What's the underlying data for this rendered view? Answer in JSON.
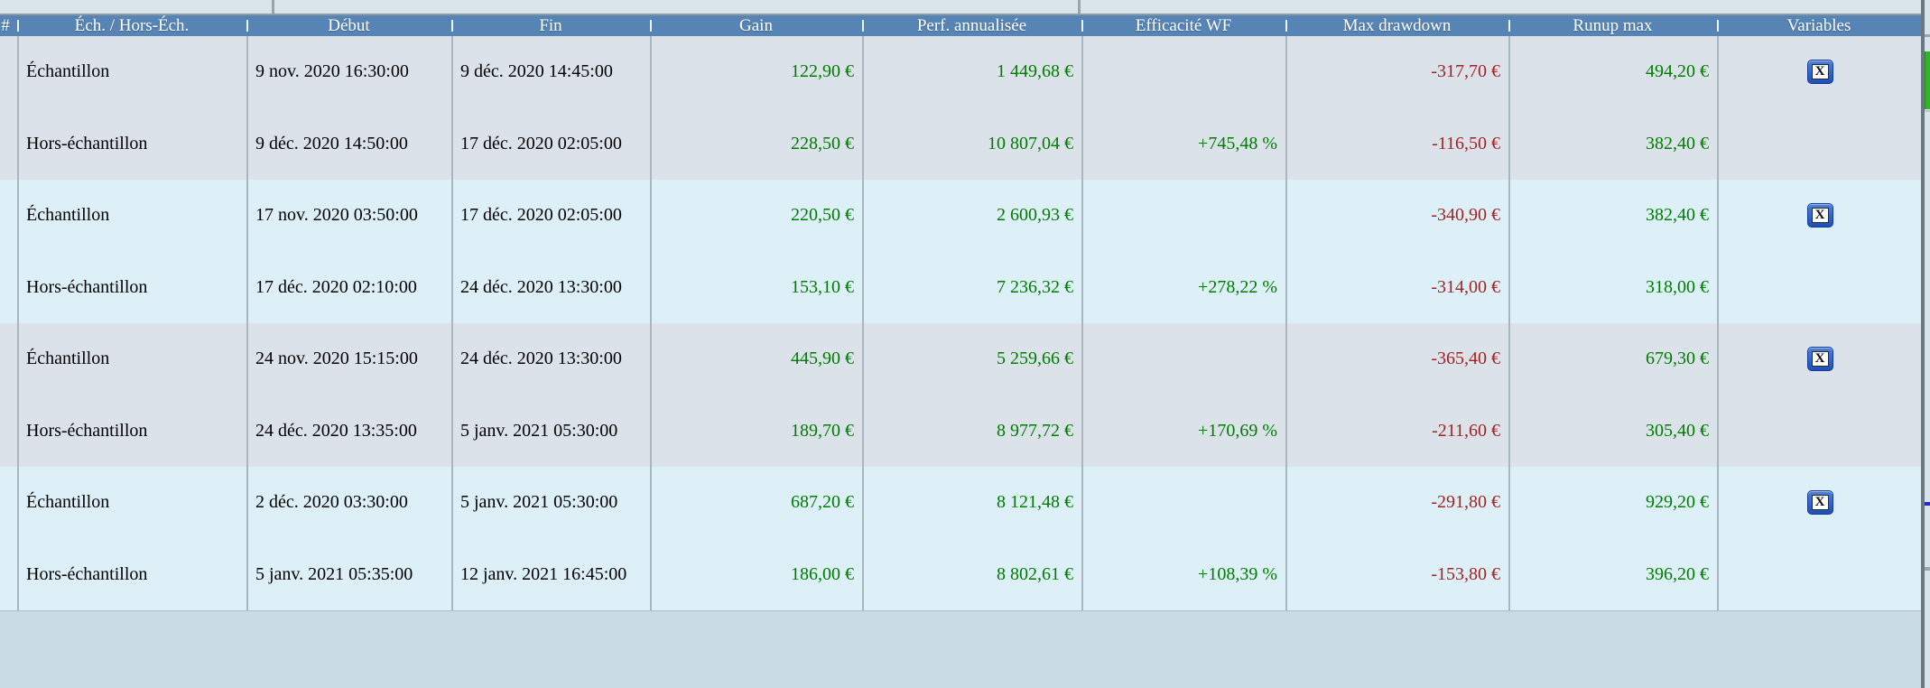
{
  "table": {
    "columns": [
      {
        "key": "num",
        "label": "#"
      },
      {
        "key": "type",
        "label": "Éch. / Hors-Éch."
      },
      {
        "key": "debut",
        "label": "Début"
      },
      {
        "key": "fin",
        "label": "Fin"
      },
      {
        "key": "gain",
        "label": "Gain"
      },
      {
        "key": "perf",
        "label": "Perf. annualisée"
      },
      {
        "key": "eff",
        "label": "Efficacité WF"
      },
      {
        "key": "dd",
        "label": "Max drawdown"
      },
      {
        "key": "runup",
        "label": "Runup max"
      },
      {
        "key": "vars",
        "label": "Variables"
      }
    ],
    "rows": [
      {
        "num": "",
        "type": "Échantillon",
        "debut": "9 nov. 2020 16:30:00",
        "fin": "9 déc. 2020 14:45:00",
        "gain": "122,90 €",
        "perf": "1 449,68 €",
        "eff": "",
        "dd": "-317,70 €",
        "runup": "494,20 €",
        "variables": true
      },
      {
        "num": "",
        "type": "Hors-échantillon",
        "debut": "9 déc. 2020 14:50:00",
        "fin": "17 déc. 2020 02:05:00",
        "gain": "228,50 €",
        "perf": "10 807,04 €",
        "eff": "+745,48 %",
        "dd": "-116,50 €",
        "runup": "382,40 €",
        "variables": false
      },
      {
        "num": "",
        "type": "Échantillon",
        "debut": "17 nov. 2020 03:50:00",
        "fin": "17 déc. 2020 02:05:00",
        "gain": "220,50 €",
        "perf": "2 600,93 €",
        "eff": "",
        "dd": "-340,90 €",
        "runup": "382,40 €",
        "variables": true
      },
      {
        "num": "",
        "type": "Hors-échantillon",
        "debut": "17 déc. 2020 02:10:00",
        "fin": "24 déc. 2020 13:30:00",
        "gain": "153,10 €",
        "perf": "7 236,32 €",
        "eff": "+278,22 %",
        "dd": "-314,00 €",
        "runup": "318,00 €",
        "variables": false
      },
      {
        "num": "",
        "type": "Échantillon",
        "debut": "24 nov. 2020 15:15:00",
        "fin": "24 déc. 2020 13:30:00",
        "gain": "445,90 €",
        "perf": "5 259,66 €",
        "eff": "",
        "dd": "-365,40 €",
        "runup": "679,30 €",
        "variables": true
      },
      {
        "num": "",
        "type": "Hors-échantillon",
        "debut": "24 déc. 2020 13:35:00",
        "fin": "5 janv. 2021 05:30:00",
        "gain": "189,70 €",
        "perf": "8 977,72 €",
        "eff": "+170,69 %",
        "dd": "-211,60 €",
        "runup": "305,40 €",
        "variables": false
      },
      {
        "num": "",
        "type": "Échantillon",
        "debut": "2 déc. 2020 03:30:00",
        "fin": "5 janv. 2021 05:30:00",
        "gain": "687,20 €",
        "perf": "8 121,48 €",
        "eff": "",
        "dd": "-291,80 €",
        "runup": "929,20 €",
        "variables": true
      },
      {
        "num": "",
        "type": "Hors-échantillon",
        "debut": "5 janv. 2021 05:35:00",
        "fin": "12 janv. 2021 16:45:00",
        "gain": "186,00 €",
        "perf": "8 802,61 €",
        "eff": "+108,39 %",
        "dd": "-153,80 €",
        "runup": "396,20 €",
        "variables": false
      }
    ]
  },
  "icons": {
    "variables_glyph": "X"
  },
  "colors": {
    "header_blue": "#5684b4",
    "positive_green": "#007c00",
    "negative_red": "#a42222",
    "stripe_gray": "#dbe2e9",
    "stripe_cyan": "#ddeff7"
  }
}
